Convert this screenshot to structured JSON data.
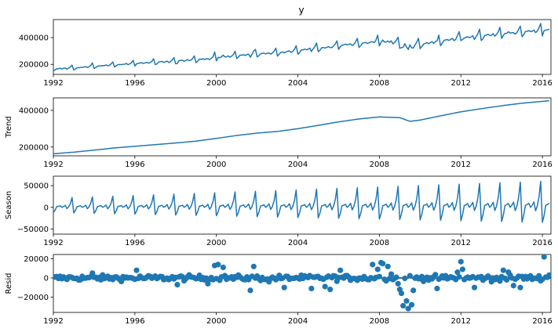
{
  "figure": {
    "title": "y",
    "line_color": "#1f77b4"
  },
  "chart_data": [
    {
      "type": "line",
      "panel": "observed",
      "title": "y",
      "ylabel": "",
      "xlim": [
        1992.0,
        2016.42
      ],
      "ylim": [
        125000,
        535000
      ],
      "x_ticks": [
        1992,
        1996,
        2000,
        2004,
        2008,
        2012,
        2016
      ],
      "x_tick_labels": [
        "1992",
        "1996",
        "2000",
        "2004",
        "2008",
        "2012",
        "2016"
      ],
      "y_ticks": [
        200000,
        400000
      ],
      "y_tick_labels": [
        "200000",
        "400000"
      ],
      "series": [
        {
          "values_from": "trend + season + resid (monthly, Jan 1992 - May 2016)"
        }
      ]
    },
    {
      "type": "line",
      "panel": "trend",
      "ylabel": "Trend",
      "xlim": [
        1992.0,
        2016.42
      ],
      "ylim": [
        152000,
        468000
      ],
      "x_ticks": [
        1992,
        1996,
        2000,
        2004,
        2008,
        2012,
        2016
      ],
      "x_tick_labels": [
        "1992",
        "1996",
        "2000",
        "2004",
        "2008",
        "2012",
        "2016"
      ],
      "y_ticks": [
        200000,
        400000
      ],
      "y_tick_labels": [
        "200000",
        "400000"
      ],
      "trend_anchors": {
        "x": [
          1992.0,
          1993.0,
          1994.0,
          1995.0,
          1996.0,
          1997.0,
          1998.0,
          1999.0,
          2000.0,
          2001.0,
          2002.0,
          2003.0,
          2004.0,
          2005.0,
          2006.0,
          2007.0,
          2008.0,
          2009.0,
          2009.5,
          2010.0,
          2011.0,
          2012.0,
          2013.0,
          2014.0,
          2015.0,
          2016.0,
          2016.42
        ],
        "y": [
          163000,
          172000,
          183000,
          195000,
          204000,
          213000,
          222000,
          232000,
          247000,
          263000,
          276000,
          285000,
          300000,
          318000,
          337000,
          353000,
          364000,
          360000,
          340000,
          347000,
          370000,
          392000,
          409000,
          425000,
          439000,
          449000,
          453000
        ]
      }
    },
    {
      "type": "line",
      "panel": "season",
      "ylabel": "Season",
      "xlim": [
        1992.0,
        2016.42
      ],
      "ylim": [
        -62000,
        72000
      ],
      "x_ticks": [
        1992,
        1996,
        2000,
        2004,
        2008,
        2012,
        2016
      ],
      "x_tick_labels": [
        "1992",
        "1996",
        "2000",
        "2004",
        "2008",
        "2012",
        "2016"
      ],
      "y_ticks": [
        -50000,
        0,
        50000
      ],
      "y_tick_labels": [
        "−50000",
        "0",
        "50000"
      ],
      "monthly_pattern": [
        -22000,
        -12000,
        3000,
        4000,
        6000,
        0,
        3000,
        8000,
        -5000,
        2000,
        15000,
        38000
      ],
      "amplitude_growth": {
        "x": [
          1992.0,
          2016.42
        ],
        "scale": [
          0.55,
          1.6
        ]
      }
    },
    {
      "type": "scatter",
      "panel": "resid",
      "ylabel": "Resid",
      "xlim": [
        1992.0,
        2016.42
      ],
      "ylim": [
        -36000,
        24500
      ],
      "x_ticks": [
        1992,
        1996,
        2000,
        2004,
        2008,
        2012,
        2016
      ],
      "x_tick_labels": [
        "1992",
        "1996",
        "2000",
        "2004",
        "2008",
        "2012",
        "2016"
      ],
      "y_ticks": [
        -20000,
        0,
        20000
      ],
      "y_tick_labels": [
        "−20000",
        "0",
        "20000"
      ],
      "baseline": 0,
      "outliers": [
        {
          "x": 1993.9,
          "y": 5000
        },
        {
          "x": 1996.1,
          "y": 8000
        },
        {
          "x": 1998.1,
          "y": -7000
        },
        {
          "x": 1999.6,
          "y": -6000
        },
        {
          "x": 1999.9,
          "y": 13000
        },
        {
          "x": 2000.1,
          "y": 14000
        },
        {
          "x": 2000.3,
          "y": 11000
        },
        {
          "x": 2001.7,
          "y": -13000
        },
        {
          "x": 2001.8,
          "y": 12000
        },
        {
          "x": 2002.6,
          "y": -4000
        },
        {
          "x": 2003.3,
          "y": -10000
        },
        {
          "x": 2004.7,
          "y": -11000
        },
        {
          "x": 2005.3,
          "y": -9000
        },
        {
          "x": 2005.6,
          "y": -12000
        },
        {
          "x": 2006.1,
          "y": 8000
        },
        {
          "x": 2007.7,
          "y": 14000
        },
        {
          "x": 2007.9,
          "y": 9000
        },
        {
          "x": 2008.1,
          "y": 16000
        },
        {
          "x": 2008.2,
          "y": 15000
        },
        {
          "x": 2008.4,
          "y": 12000
        },
        {
          "x": 2008.6,
          "y": 13000
        },
        {
          "x": 2008.6,
          "y": 4000
        },
        {
          "x": 2008.9,
          "y": -6000
        },
        {
          "x": 2009.0,
          "y": -12000
        },
        {
          "x": 2009.1,
          "y": -16000
        },
        {
          "x": 2009.2,
          "y": -19000
        },
        {
          "x": 2009.2,
          "y": -29000
        },
        {
          "x": 2009.3,
          "y": -24000
        },
        {
          "x": 2009.4,
          "y": -32000
        },
        {
          "x": 2009.6,
          "y": -28000
        },
        {
          "x": 2009.7,
          "y": -13000
        },
        {
          "x": 2010.8,
          "y": -11000
        },
        {
          "x": 2011.8,
          "y": 6000
        },
        {
          "x": 2012.0,
          "y": 17000
        },
        {
          "x": 2012.1,
          "y": 9000
        },
        {
          "x": 2012.7,
          "y": -10000
        },
        {
          "x": 2013.5,
          "y": -4000
        },
        {
          "x": 2014.1,
          "y": 8000
        },
        {
          "x": 2014.3,
          "y": 6000
        },
        {
          "x": 2014.6,
          "y": -8000
        },
        {
          "x": 2014.9,
          "y": -10000
        },
        {
          "x": 2016.1,
          "y": 22000
        },
        {
          "x": 2016.4,
          "y": 3000
        }
      ]
    }
  ]
}
